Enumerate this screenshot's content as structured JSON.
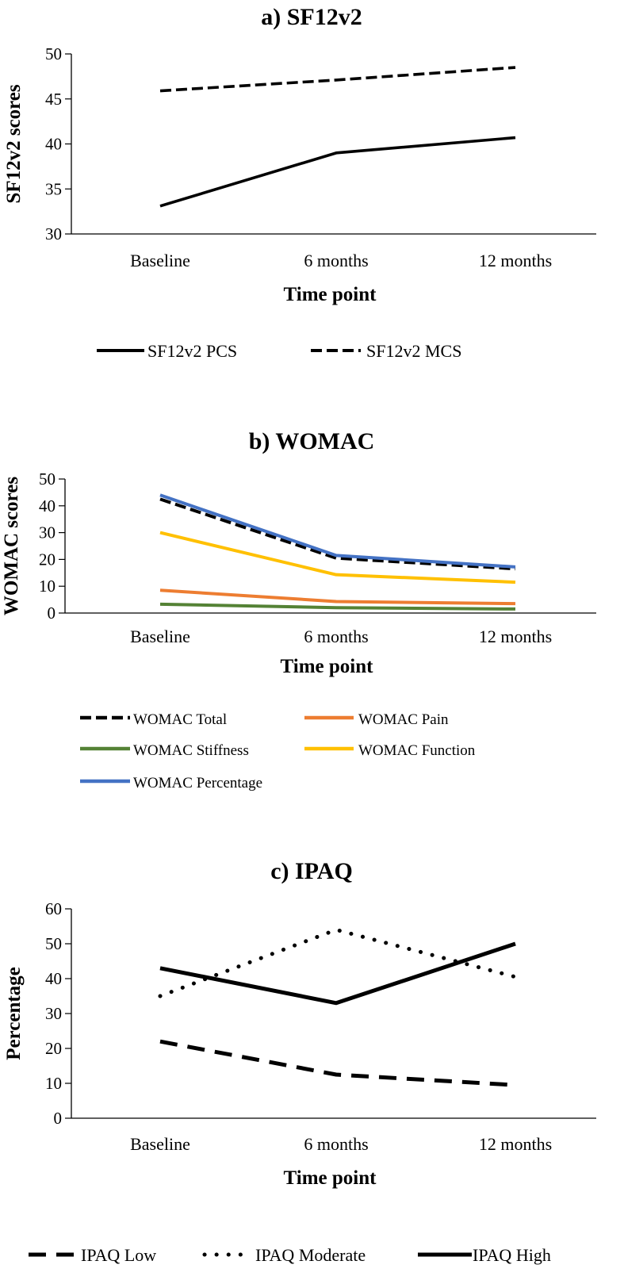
{
  "chart_data": [
    {
      "type": "line",
      "title": "a) SF12v2",
      "xlabel": "Time point",
      "ylabel": "SF12v2 scores",
      "categories": [
        "Baseline",
        "6 months",
        "12 months"
      ],
      "ylim": [
        30,
        50
      ],
      "yticks": [
        30,
        35,
        40,
        45,
        50
      ],
      "grid": false,
      "legend_position": "bottom",
      "series": [
        {
          "name": "SF12v2 PCS",
          "values": [
            33.1,
            39.0,
            40.7
          ],
          "color": "#000000",
          "style": "solid"
        },
        {
          "name": "SF12v2 MCS",
          "values": [
            45.9,
            47.1,
            48.5
          ],
          "color": "#000000",
          "style": "dashed"
        }
      ]
    },
    {
      "type": "line",
      "title": "b) WOMAC",
      "xlabel": "Time point",
      "ylabel": "WOMAC scores",
      "categories": [
        "Baseline",
        "6 months",
        "12 months"
      ],
      "ylim": [
        0,
        50
      ],
      "yticks": [
        0,
        10,
        20,
        30,
        40,
        50
      ],
      "grid": false,
      "legend_position": "bottom",
      "series": [
        {
          "name": "WOMAC Total",
          "values": [
            42.5,
            20.5,
            16.5
          ],
          "color": "#000000",
          "style": "dashed"
        },
        {
          "name": "WOMAC Pain",
          "values": [
            8.5,
            4.3,
            3.5
          ],
          "color": "#ED7D31",
          "style": "solid"
        },
        {
          "name": "WOMAC Stiffness",
          "values": [
            3.3,
            2.0,
            1.5
          ],
          "color": "#548235",
          "style": "solid"
        },
        {
          "name": "WOMAC Function",
          "values": [
            30.0,
            14.3,
            11.5
          ],
          "color": "#FFC000",
          "style": "solid"
        },
        {
          "name": "WOMAC Percentage",
          "values": [
            44.0,
            21.5,
            17.2
          ],
          "color": "#4472C4",
          "style": "solid"
        }
      ]
    },
    {
      "type": "line",
      "title": "c) IPAQ",
      "xlabel": "Time point",
      "ylabel": "Percentage",
      "categories": [
        "Baseline",
        "6 months",
        "12 months"
      ],
      "ylim": [
        0,
        60
      ],
      "yticks": [
        0,
        10,
        20,
        30,
        40,
        50,
        60
      ],
      "grid": false,
      "legend_position": "bottom",
      "series": [
        {
          "name": "IPAQ Low",
          "values": [
            22,
            12.5,
            9.5
          ],
          "color": "#000000",
          "style": "dashed"
        },
        {
          "name": "IPAQ Moderate",
          "values": [
            35,
            54,
            40.5
          ],
          "color": "#000000",
          "style": "dotted"
        },
        {
          "name": "IPAQ High",
          "values": [
            43,
            33,
            50
          ],
          "color": "#000000",
          "style": "solid"
        }
      ]
    }
  ]
}
